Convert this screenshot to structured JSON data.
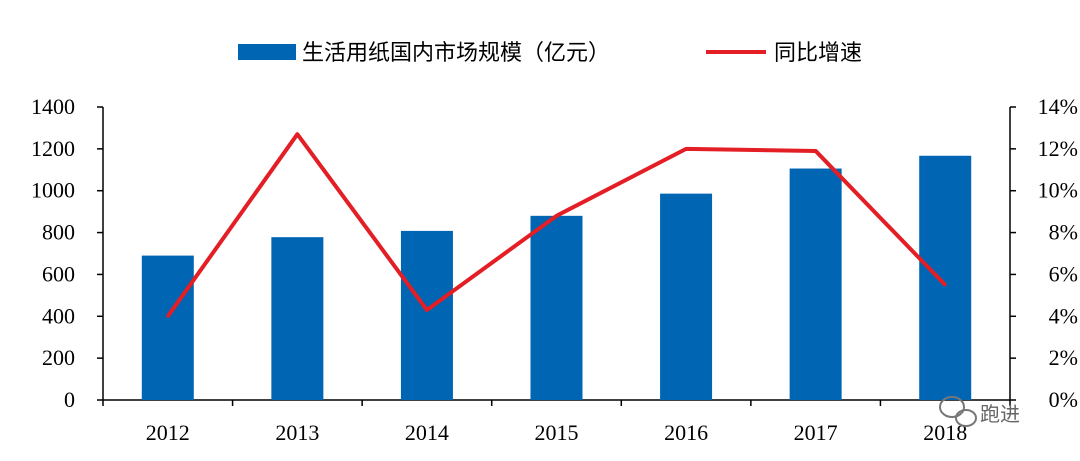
{
  "chart_data": {
    "type": "bar",
    "categories": [
      "2012",
      "2013",
      "2014",
      "2015",
      "2016",
      "2017",
      "2018"
    ],
    "series": [
      {
        "name": "生活用纸国内市场规模（亿元）",
        "type": "bar",
        "axis": "left",
        "color": "#0066b3",
        "values": [
          690,
          778,
          808,
          880,
          986,
          1106,
          1167
        ]
      },
      {
        "name": "同比增速",
        "type": "line",
        "axis": "right",
        "color": "#e31e24",
        "values": [
          4.0,
          12.7,
          4.3,
          8.8,
          12.0,
          11.9,
          5.5
        ]
      }
    ],
    "y_left": {
      "min": 0,
      "max": 1400,
      "step": 200,
      "ticks": [
        "0",
        "200",
        "400",
        "600",
        "800",
        "1000",
        "1200",
        "1400"
      ]
    },
    "y_right": {
      "min": 0,
      "max": 14,
      "step": 2,
      "ticks": [
        "0%",
        "2%",
        "4%",
        "6%",
        "8%",
        "10%",
        "12%",
        "14%"
      ]
    },
    "legend": "top-center",
    "grid": false
  },
  "watermark": {
    "text": "跑进",
    "icon": "wechat-icon"
  }
}
